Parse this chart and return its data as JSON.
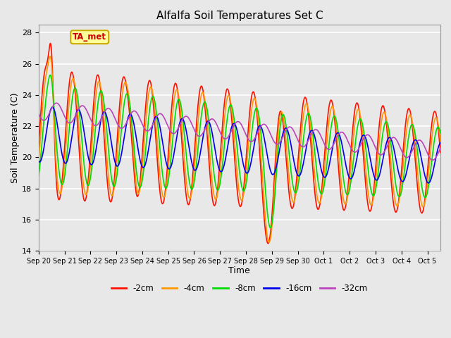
{
  "title": "Alfalfa Soil Temperatures Set C",
  "xlabel": "Time",
  "ylabel": "Soil Temperature (C)",
  "ylim": [
    14,
    28.5
  ],
  "background_color": "#e8e8e8",
  "plot_bg_color": "#e8e8e8",
  "grid_color": "white",
  "series": {
    "-2cm": {
      "color": "#ff1100",
      "lw": 1.2
    },
    "-4cm": {
      "color": "#ff9900",
      "lw": 1.2
    },
    "-8cm": {
      "color": "#00dd00",
      "lw": 1.2
    },
    "-16cm": {
      "color": "#0000ee",
      "lw": 1.2
    },
    "-32cm": {
      "color": "#bb44bb",
      "lw": 1.2
    }
  },
  "legend_label": "TA_met",
  "legend_bg": "#ffff99",
  "legend_border": "#ccaa00",
  "legend_text_color": "#cc0000",
  "xtick_labels": [
    "Sep 20",
    "Sep 21",
    "Sep 22",
    "Sep 23",
    "Sep 24",
    "Sep 25",
    "Sep 26",
    "Sep 27",
    "Sep 28",
    "Sep 29",
    "Sep 30",
    "Oct 1",
    "Oct 2",
    "Oct 3",
    "Oct 4",
    "Oct 5"
  ],
  "ytick_values": [
    14,
    16,
    18,
    20,
    22,
    24,
    26,
    28
  ]
}
